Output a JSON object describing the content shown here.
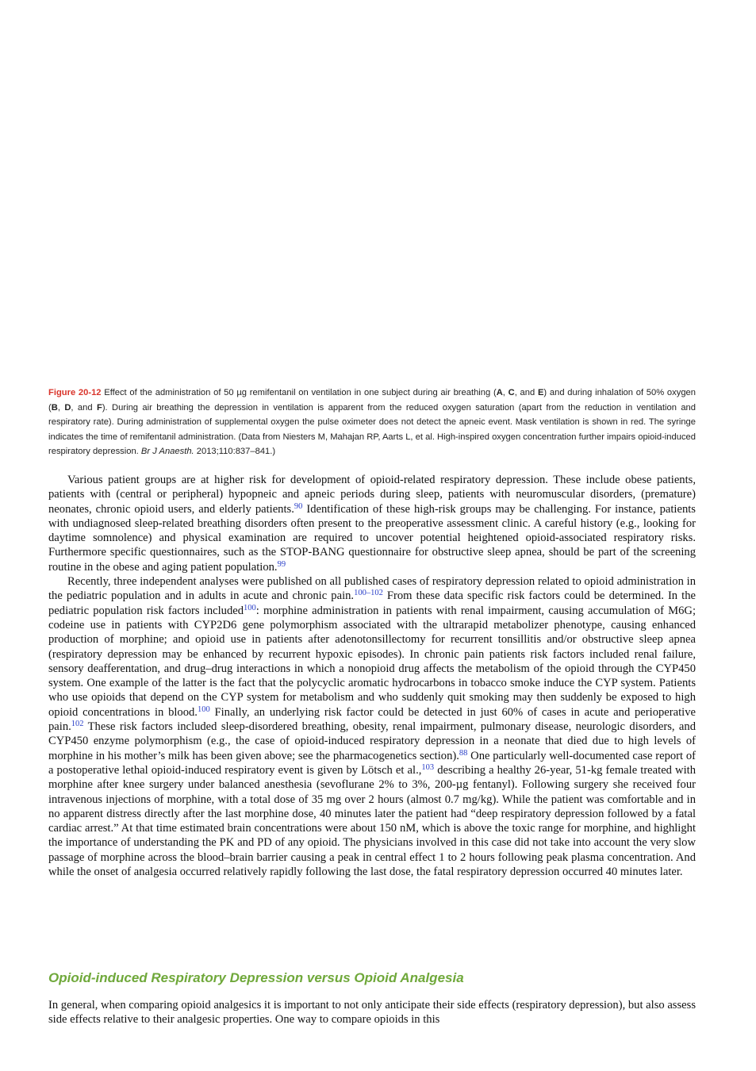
{
  "caption": {
    "runs": [
      {
        "text": "Figure 20-12",
        "style": "label"
      },
      {
        "text": " Effect of the administration of 50 µg remifentanil on ventilation in one subject during air breathing (",
        "style": "plain"
      },
      {
        "text": "A",
        "style": "bold"
      },
      {
        "text": ", ",
        "style": "plain"
      },
      {
        "text": "C",
        "style": "bold"
      },
      {
        "text": ", and ",
        "style": "plain"
      },
      {
        "text": "E",
        "style": "bold"
      },
      {
        "text": ") and during inhalation of 50% oxygen (",
        "style": "plain"
      },
      {
        "text": "B",
        "style": "bold"
      },
      {
        "text": ", ",
        "style": "plain"
      },
      {
        "text": "D",
        "style": "bold"
      },
      {
        "text": ", and ",
        "style": "plain"
      },
      {
        "text": "F",
        "style": "bold"
      },
      {
        "text": "). During air breathing the depression in ventilation is apparent from the reduced oxygen saturation (apart from the reduction in ventilation and respiratory rate). During administration of supplemental oxygen the pulse oximeter does not detect the apneic event. Mask ventilation is shown in red. The syringe indicates the time of remifentanil administration. (Data from Niesters M, Mahajan RP, Aarts L, et al. High-inspired oxygen concentration further impairs opioid-induced respiratory depression. ",
        "style": "plain"
      },
      {
        "text": "Br J Anaesth.",
        "style": "italic"
      },
      {
        "text": " 2013;110:837–841.)",
        "style": "plain"
      }
    ]
  },
  "body": {
    "paragraphs": [
      {
        "runs": [
          {
            "text": "Various patient groups are at higher risk for development of opioid-related respiratory depression. These include obese patients, patients with (central or peripheral) hypopneic and apneic periods during sleep, patients with neuromuscular disorders, (premature) neonates, chronic opioid users, and elderly patients.",
            "style": "plain"
          },
          {
            "text": "90",
            "style": "sup"
          },
          {
            "text": " Identification of these high-risk groups may be challenging. For instance, patients with undiagnosed sleep-related breathing disorders often present to the preoperative assessment clinic. A careful history (e.g., looking for daytime somnolence) and physical examination are required to uncover potential heightened opioid-associated respiratory risks. Furthermore specific questionnaires, such as the STOP-BANG questionnaire for obstructive sleep apnea, should be part of the screening routine in the obese and aging patient population.",
            "style": "plain"
          },
          {
            "text": "99",
            "style": "sup"
          }
        ]
      },
      {
        "runs": [
          {
            "text": "Recently, three independent analyses were published on all published cases of respiratory depression related to opioid administration in the pediatric population and in adults in acute and chronic pain.",
            "style": "plain"
          },
          {
            "text": "100–102",
            "style": "sup"
          },
          {
            "text": " From these data specific risk factors could be determined. In the pediatric population risk factors included",
            "style": "plain"
          },
          {
            "text": "100",
            "style": "sup"
          },
          {
            "text": ": morphine administration in patients with renal impairment, causing accumulation of M6G; codeine use in patients with CYP2D6 gene polymorphism associated with the ultrarapid metabolizer phenotype, causing enhanced production of morphine; and opioid use in patients after adenotonsillectomy for recurrent tonsillitis and/or obstructive sleep apnea (respiratory depression may be enhanced by recurrent hypoxic episodes). In chronic pain patients risk factors included renal failure, sensory deafferentation, and drug–drug interactions in which a nonopioid drug affects the metabolism of the opioid through the CYP450 system. One example of the latter is the fact that the polycyclic aromatic hydrocarbons in tobacco smoke induce the CYP system. Patients who use opioids that depend on the CYP system for metabolism and who suddenly quit smoking may then suddenly be exposed to high opioid concentrations in blood.",
            "style": "plain"
          },
          {
            "text": "100",
            "style": "sup"
          },
          {
            "text": " Finally, an underlying risk factor could be detected in just 60% of cases in acute and perioperative pain.",
            "style": "plain"
          },
          {
            "text": "102",
            "style": "sup"
          },
          {
            "text": " These risk factors included sleep-disordered breathing, obesity, renal impairment, pulmonary disease, neurologic disorders, and CYP450 enzyme polymorphism (e.g., the case of opioid-induced respiratory depression in a neonate that died due to high levels of morphine in his mother’s milk has been given above; see the pharmacogenetics section).",
            "style": "plain"
          },
          {
            "text": "88",
            "style": "sup"
          },
          {
            "text": " One particularly well-documented case report of a postoperative lethal opioid-induced respiratory event is given by Lötsch et al.,",
            "style": "plain"
          },
          {
            "text": "103",
            "style": "sup"
          },
          {
            "text": " describing a healthy 26-year, 51-kg female treated with morphine after knee surgery under balanced anesthesia (sevoflurane 2% to 3%, 200-µg fentanyl). Following surgery she received four intravenous injections of morphine, with a total dose of 35 mg over 2 hours (almost 0.7 mg/kg). While the patient was comfortable and in no apparent distress directly after the last morphine dose, 40 minutes later the patient had “deep respiratory depression followed by a fatal cardiac arrest.” At that time estimated brain concentrations were about 150 nM, which is above the toxic range for morphine, and highlight the importance of understanding the PK and PD of any opioid. The physicians involved in this case did not take into account the very slow passage of morphine across the blood–brain barrier causing a peak in central effect 1 to 2 hours following peak plasma concentration. And while the onset of analgesia occurred relatively rapidly following the last dose, the fatal respiratory depression occurred 40 minutes later.",
            "style": "plain"
          }
        ]
      }
    ]
  },
  "section": {
    "heading": "Opioid-induced Respiratory Depression versus Opioid Analgesia",
    "paragraph": "In general, when comparing opioid analgesics it is important to not only anticipate their side effects (respiratory depression), but also assess side effects relative to their analgesic properties. One way to compare opioids in this"
  }
}
